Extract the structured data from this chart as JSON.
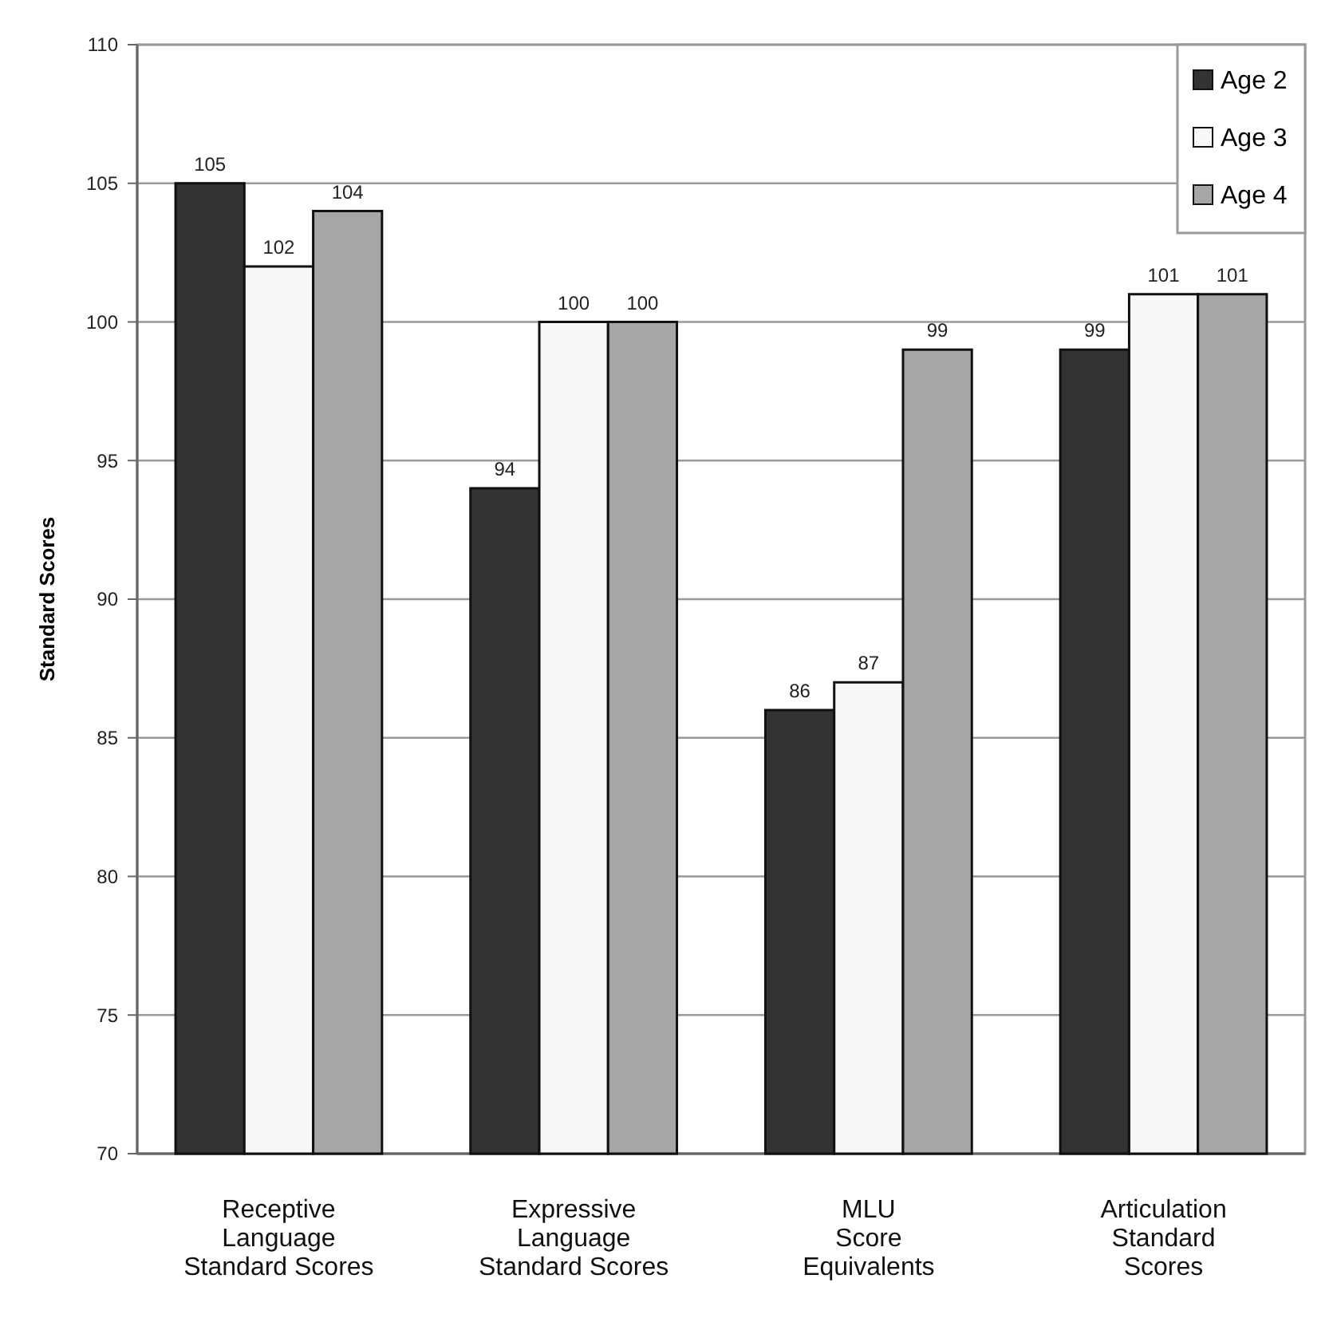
{
  "chart_data": {
    "type": "bar",
    "ylabel": "Standard Scores",
    "categories": [
      "Receptive\nLanguage\nStandard Scores",
      "Expressive\nLanguage\nStandard Scores",
      "MLU\nScore\nEquivalents",
      "Articulation\nStandard\nScores"
    ],
    "series": [
      {
        "name": "Age 2",
        "color": "#333333",
        "values": [
          105,
          94,
          86,
          99
        ]
      },
      {
        "name": "Age 3",
        "color": "#f7f7f7",
        "values": [
          102,
          100,
          87,
          101
        ]
      },
      {
        "name": "Age 4",
        "color": "#a6a6a6",
        "values": [
          104,
          100,
          99,
          101
        ]
      }
    ],
    "ylim": [
      70,
      110
    ],
    "yticks": [
      70,
      75,
      80,
      85,
      90,
      95,
      100,
      105,
      110
    ],
    "grid": "y",
    "legend": "top right",
    "data_labels": true
  }
}
